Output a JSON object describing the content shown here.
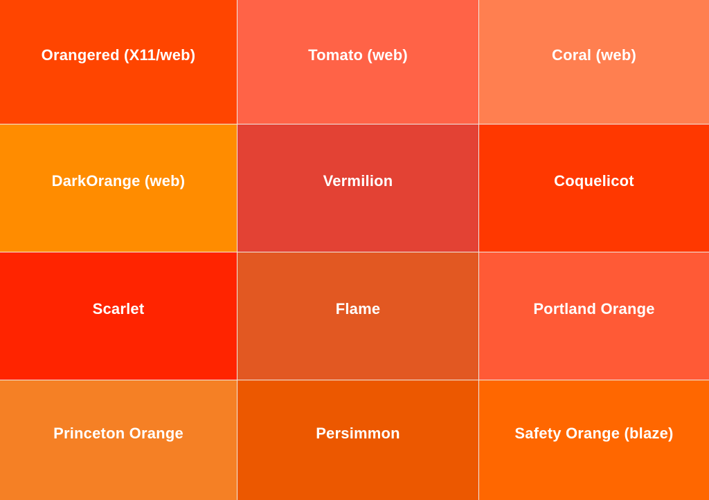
{
  "swatches": [
    {
      "name": "Orangered (X11/web)",
      "color": "#ff4500"
    },
    {
      "name": "Tomato (web)",
      "color": "#ff6347"
    },
    {
      "name": "Coral (web)",
      "color": "#ff7f50"
    },
    {
      "name": "DarkOrange (web)",
      "color": "#ff8c00"
    },
    {
      "name": "Vermilion",
      "color": "#e34234"
    },
    {
      "name": "Coquelicot",
      "color": "#ff3800"
    },
    {
      "name": "Scarlet",
      "color": "#ff2400"
    },
    {
      "name": "Flame",
      "color": "#e25822"
    },
    {
      "name": "Portland Orange",
      "color": "#ff5a36"
    },
    {
      "name": "Princeton Orange",
      "color": "#f58025"
    },
    {
      "name": "Persimmon",
      "color": "#ec5800"
    },
    {
      "name": "Safety Orange (blaze)",
      "color": "#ff6700"
    }
  ]
}
